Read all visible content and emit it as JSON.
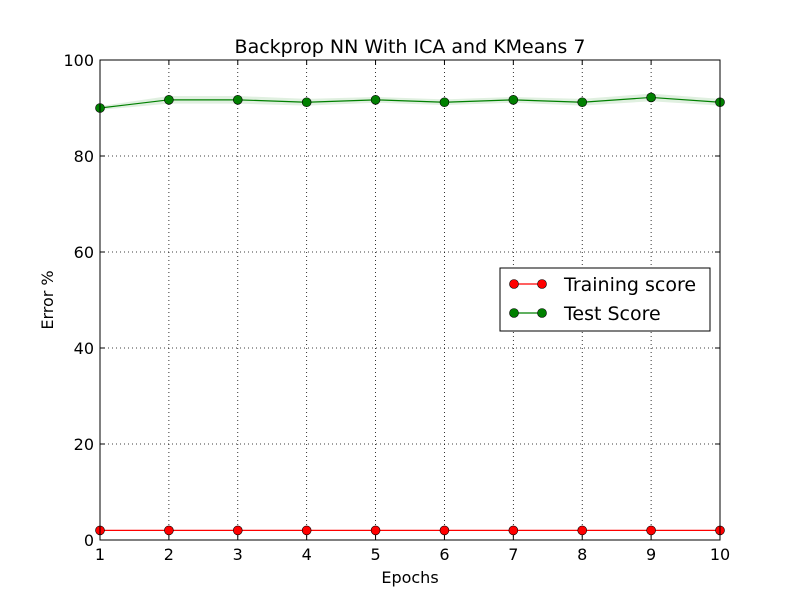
{
  "chart_data": {
    "type": "line",
    "title": "Backprop NN With ICA and KMeans 7",
    "xlabel": "Epochs",
    "ylabel": "Error %",
    "x": [
      1,
      2,
      3,
      4,
      5,
      6,
      7,
      8,
      9,
      10
    ],
    "xlim": [
      1,
      10
    ],
    "ylim": [
      0,
      100
    ],
    "xticks": [
      1,
      2,
      3,
      4,
      5,
      6,
      7,
      8,
      9,
      10
    ],
    "yticks": [
      0,
      20,
      40,
      60,
      80,
      100
    ],
    "grid": true,
    "legend_position": "center-right",
    "series": [
      {
        "name": "Training score",
        "color": "#ff0000",
        "values": [
          2,
          2,
          2,
          2,
          2,
          2,
          2,
          2,
          2,
          2
        ],
        "band": [
          0,
          0,
          0,
          0,
          0,
          0,
          0,
          0,
          0,
          0
        ]
      },
      {
        "name": "Test Score",
        "color": "#008000",
        "values": [
          90,
          91.7,
          91.7,
          91.2,
          91.7,
          91.2,
          91.7,
          91.2,
          92.2,
          91.2
        ],
        "band": [
          0.4,
          0.8,
          0.8,
          0.7,
          0.6,
          0.6,
          0.6,
          0.7,
          0.8,
          0.7
        ]
      }
    ]
  }
}
